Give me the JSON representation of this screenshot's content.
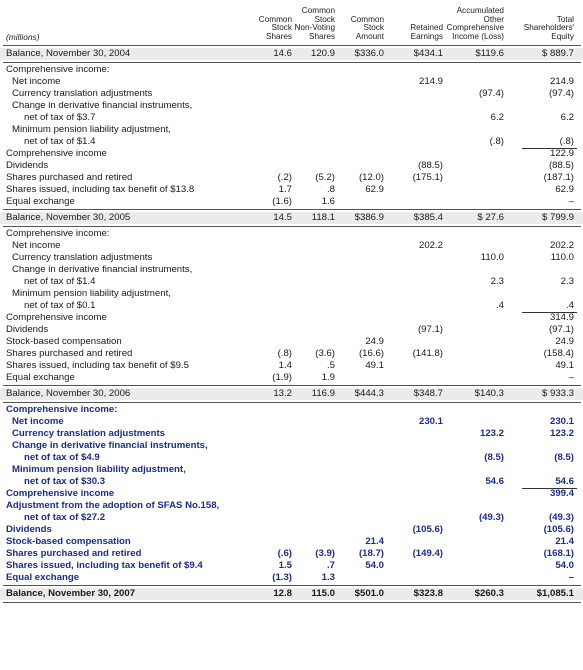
{
  "header": {
    "units": "(millions)",
    "columns": [
      [
        "Common",
        "Stock",
        "Shares"
      ],
      [
        "Common",
        "Stock",
        "Non-Voting",
        "Shares"
      ],
      [
        "Common",
        "Stock",
        "Amount"
      ],
      [
        "Retained",
        "Earnings"
      ],
      [
        "Accumulated",
        "Other",
        "Comprehensive",
        "Income (Loss)"
      ],
      [
        "Total",
        "Shareholders'",
        "Equity"
      ]
    ]
  },
  "rows": [
    {
      "label": "Balance, November 30, 2004",
      "values": [
        "14.6",
        "120.9",
        "$336.0",
        "$434.1",
        "$119.6",
        "$  889.7"
      ],
      "type": "balance"
    },
    {
      "label": "Comprehensive income:",
      "values": [
        "",
        "",
        "",
        "",
        "",
        ""
      ],
      "indent": 0
    },
    {
      "label": "Net income",
      "values": [
        "",
        "",
        "",
        "214.9",
        "",
        "214.9"
      ],
      "indent": 1
    },
    {
      "label": "Currency translation adjustments",
      "values": [
        "",
        "",
        "",
        "",
        "(97.4)",
        "(97.4)"
      ],
      "indent": 1
    },
    {
      "label": "Change in derivative financial instruments,",
      "values": [
        "",
        "",
        "",
        "",
        "",
        ""
      ],
      "indent": 1
    },
    {
      "label": "net of tax of $3.7",
      "values": [
        "",
        "",
        "",
        "",
        "6.2",
        "6.2"
      ],
      "indent": 2
    },
    {
      "label": "Minimum pension liability adjustment,",
      "values": [
        "",
        "",
        "",
        "",
        "",
        ""
      ],
      "indent": 1
    },
    {
      "label": "net of tax of $1.4",
      "values": [
        "",
        "",
        "",
        "",
        "(.8)",
        "(.8)"
      ],
      "indent": 2,
      "underline": true
    },
    {
      "label": "Comprehensive income",
      "values": [
        "",
        "",
        "",
        "",
        "",
        "122.9"
      ],
      "indent": 0
    },
    {
      "label": "Dividends",
      "values": [
        "",
        "",
        "",
        "(88.5)",
        "",
        "(88.5)"
      ],
      "indent": 0
    },
    {
      "label": "Shares purchased and retired",
      "values": [
        "(.2)",
        "(5.2)",
        "(12.0)",
        "(175.1)",
        "",
        "(187.1)"
      ],
      "indent": 0
    },
    {
      "label": "Shares issued, including tax benefit of $13.8",
      "values": [
        "1.7",
        ".8",
        "62.9",
        "",
        "",
        "62.9"
      ],
      "indent": 0
    },
    {
      "label": "Equal exchange",
      "values": [
        "(1.6)",
        "1.6",
        "",
        "",
        "",
        "–"
      ],
      "indent": 0
    },
    {
      "label": "Balance, November 30, 2005",
      "values": [
        "14.5",
        "118.1",
        "$386.9",
        "$385.4",
        "$  27.6",
        "$  799.9"
      ],
      "type": "balance"
    },
    {
      "label": "Comprehensive income:",
      "values": [
        "",
        "",
        "",
        "",
        "",
        ""
      ],
      "indent": 0
    },
    {
      "label": "Net income",
      "values": [
        "",
        "",
        "",
        "202.2",
        "",
        "202.2"
      ],
      "indent": 1
    },
    {
      "label": "Currency translation adjustments",
      "values": [
        "",
        "",
        "",
        "",
        "110.0",
        "110.0"
      ],
      "indent": 1
    },
    {
      "label": "Change in derivative financial instruments,",
      "values": [
        "",
        "",
        "",
        "",
        "",
        ""
      ],
      "indent": 1
    },
    {
      "label": "net of tax of $1.4",
      "values": [
        "",
        "",
        "",
        "",
        "2.3",
        "2.3"
      ],
      "indent": 2
    },
    {
      "label": "Minimum pension liability adjustment,",
      "values": [
        "",
        "",
        "",
        "",
        "",
        ""
      ],
      "indent": 1
    },
    {
      "label": "net of tax of $0.1",
      "values": [
        "",
        "",
        "",
        "",
        ".4",
        ".4"
      ],
      "indent": 2,
      "underline": true
    },
    {
      "label": "Comprehensive income",
      "values": [
        "",
        "",
        "",
        "",
        "",
        "314.9"
      ],
      "indent": 0
    },
    {
      "label": "Dividends",
      "values": [
        "",
        "",
        "",
        "(97.1)",
        "",
        "(97.1)"
      ],
      "indent": 0
    },
    {
      "label": "Stock-based compensation",
      "values": [
        "",
        "",
        "24.9",
        "",
        "",
        "24.9"
      ],
      "indent": 0
    },
    {
      "label": "Shares purchased and retired",
      "values": [
        "(.8)",
        "(3.6)",
        "(16.6)",
        "(141.8)",
        "",
        "(158.4)"
      ],
      "indent": 0
    },
    {
      "label": "Shares issued, including tax benefit of $9.5",
      "values": [
        "1.4",
        ".5",
        "49.1",
        "",
        "",
        "49.1"
      ],
      "indent": 0
    },
    {
      "label": "Equal exchange",
      "values": [
        "(1.9)",
        "1.9",
        "",
        "",
        "",
        "–"
      ],
      "indent": 0
    },
    {
      "label": "Balance, November 30, 2006",
      "values": [
        "13.2",
        "116.9",
        "$444.3",
        "$348.7",
        "$140.3",
        "$  933.3"
      ],
      "type": "balance"
    },
    {
      "label": "Comprehensive income:",
      "values": [
        "",
        "",
        "",
        "",
        "",
        ""
      ],
      "indent": 0,
      "style": "current"
    },
    {
      "label": "Net income",
      "values": [
        "",
        "",
        "",
        "230.1",
        "",
        "230.1"
      ],
      "indent": 1,
      "style": "current"
    },
    {
      "label": "Currency translation adjustments",
      "values": [
        "",
        "",
        "",
        "",
        "123.2",
        "123.2"
      ],
      "indent": 1,
      "style": "current"
    },
    {
      "label": "Change in derivative financial instruments,",
      "values": [
        "",
        "",
        "",
        "",
        "",
        ""
      ],
      "indent": 1,
      "style": "current"
    },
    {
      "label": "net of tax of $4.9",
      "values": [
        "",
        "",
        "",
        "",
        "(8.5)",
        "(8.5)"
      ],
      "indent": 2,
      "style": "current"
    },
    {
      "label": "Minimum pension liability adjustment,",
      "values": [
        "",
        "",
        "",
        "",
        "",
        ""
      ],
      "indent": 1,
      "style": "current"
    },
    {
      "label": "net of tax of $30.3",
      "values": [
        "",
        "",
        "",
        "",
        "54.6",
        "54.6"
      ],
      "indent": 2,
      "style": "current",
      "underline": true
    },
    {
      "label": "Comprehensive income",
      "values": [
        "",
        "",
        "",
        "",
        "",
        "399.4"
      ],
      "indent": 0,
      "style": "current"
    },
    {
      "label": "Adjustment from the adoption of SFAS No.158,",
      "values": [
        "",
        "",
        "",
        "",
        "",
        ""
      ],
      "indent": 0,
      "style": "current"
    },
    {
      "label": "net of tax of $27.2",
      "values": [
        "",
        "",
        "",
        "",
        "(49.3)",
        "(49.3)"
      ],
      "indent": 2,
      "style": "current"
    },
    {
      "label": "Dividends",
      "values": [
        "",
        "",
        "",
        "(105.6)",
        "",
        "(105.6)"
      ],
      "indent": 0,
      "style": "current"
    },
    {
      "label": "Stock-based compensation",
      "values": [
        "",
        "",
        "21.4",
        "",
        "",
        "21.4"
      ],
      "indent": 0,
      "style": "current"
    },
    {
      "label": "Shares purchased and retired",
      "values": [
        "(.6)",
        "(3.9)",
        "(18.7)",
        "(149.4)",
        "",
        "(168.1)"
      ],
      "indent": 0,
      "style": "current"
    },
    {
      "label": "Shares issued, including tax benefit of $9.4",
      "values": [
        "1.5",
        ".7",
        "54.0",
        "",
        "",
        "54.0"
      ],
      "indent": 0,
      "style": "current"
    },
    {
      "label": "Equal exchange",
      "values": [
        "(1.3)",
        "1.3",
        "",
        "",
        "",
        "–"
      ],
      "indent": 0,
      "style": "current"
    },
    {
      "label": "Balance, November 30, 2007",
      "values": [
        "12.8",
        "115.0",
        "$501.0",
        "$323.8",
        "$260.3",
        "$1,085.1"
      ],
      "type": "balance",
      "style": "current"
    }
  ]
}
